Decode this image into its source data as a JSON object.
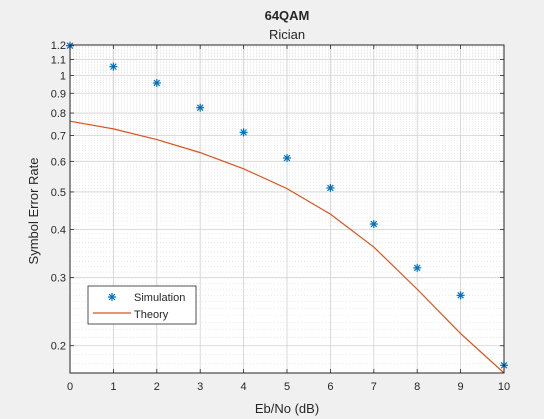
{
  "colors": {
    "figure_background": "#f0f0f0",
    "axes_background": "#ffffff",
    "axis_line": "#262626",
    "grid": "#dcdcdc",
    "simulation": "#0072bd",
    "theory": "#d95319"
  },
  "chart_data": {
    "type": "scatter",
    "title": "64QAM",
    "subtitle": "Rician",
    "xlabel": "Eb/No (dB)",
    "ylabel": "Symbol Error Rate",
    "xlim": [
      0,
      10
    ],
    "ylim": [
      0.17,
      1.2
    ],
    "yscale": "log",
    "grid": "on (major and minor)",
    "legend_location": "bottom-left",
    "xticks": [
      0,
      1,
      2,
      3,
      4,
      5,
      6,
      7,
      8,
      9,
      10
    ],
    "xtick_labels": [
      "0",
      "1",
      "2",
      "3",
      "4",
      "5",
      "6",
      "7",
      "8",
      "9",
      "10"
    ],
    "yticks": [
      0.2,
      0.3,
      0.4,
      0.5,
      0.6,
      0.7,
      0.8,
      0.9,
      1,
      1.1,
      1.2
    ],
    "ytick_labels": [
      "0.2",
      "0.3",
      "0.4",
      "0.5",
      "0.6",
      "0.7",
      "0.8",
      "0.9",
      "1",
      "1.1",
      "1.2"
    ],
    "series": [
      {
        "name": "Simulation",
        "style": "markers",
        "marker": "asterisk",
        "x": [
          0,
          1,
          2,
          3,
          4,
          5,
          6,
          7,
          8,
          9,
          10
        ],
        "y": [
          1.195,
          1.055,
          0.957,
          0.826,
          0.713,
          0.612,
          0.512,
          0.413,
          0.318,
          0.27,
          0.178
        ]
      },
      {
        "name": "Theory",
        "style": "line",
        "x": [
          0,
          1,
          2,
          3,
          4,
          5,
          6,
          7,
          8,
          9,
          10
        ],
        "y": [
          0.762,
          0.728,
          0.683,
          0.632,
          0.574,
          0.51,
          0.438,
          0.36,
          0.28,
          0.215,
          0.17
        ]
      }
    ]
  }
}
